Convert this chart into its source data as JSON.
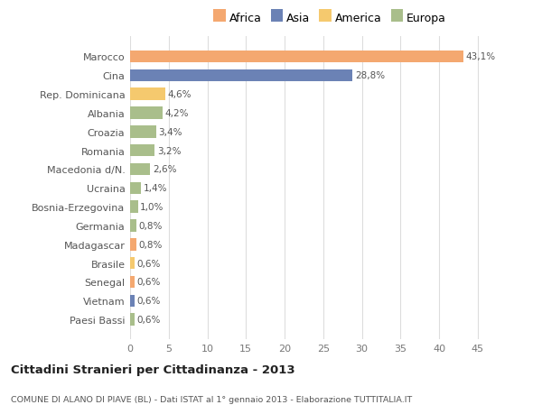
{
  "countries": [
    "Marocco",
    "Cina",
    "Rep. Dominicana",
    "Albania",
    "Croazia",
    "Romania",
    "Macedonia d/N.",
    "Ucraina",
    "Bosnia-Erzegovina",
    "Germania",
    "Madagascar",
    "Brasile",
    "Senegal",
    "Vietnam",
    "Paesi Bassi"
  ],
  "values": [
    43.1,
    28.8,
    4.6,
    4.2,
    3.4,
    3.2,
    2.6,
    1.4,
    1.0,
    0.8,
    0.8,
    0.6,
    0.6,
    0.6,
    0.6
  ],
  "labels": [
    "43,1%",
    "28,8%",
    "4,6%",
    "4,2%",
    "3,4%",
    "3,2%",
    "2,6%",
    "1,4%",
    "1,0%",
    "0,8%",
    "0,8%",
    "0,6%",
    "0,6%",
    "0,6%",
    "0,6%"
  ],
  "colors": [
    "#F4A870",
    "#6B82B5",
    "#F5C96E",
    "#A9BE8B",
    "#A9BE8B",
    "#A9BE8B",
    "#A9BE8B",
    "#A9BE8B",
    "#A9BE8B",
    "#A9BE8B",
    "#F4A870",
    "#F5C96E",
    "#F4A870",
    "#6B82B5",
    "#A9BE8B"
  ],
  "legend_labels": [
    "Africa",
    "Asia",
    "America",
    "Europa"
  ],
  "legend_colors": [
    "#F4A870",
    "#6B82B5",
    "#F5C96E",
    "#A9BE8B"
  ],
  "title": "Cittadini Stranieri per Cittadinanza - 2013",
  "subtitle": "COMUNE DI ALANO DI PIAVE (BL) - Dati ISTAT al 1° gennaio 2013 - Elaborazione TUTTITALIA.IT",
  "xlim": [
    0,
    47
  ],
  "xticks": [
    0,
    5,
    10,
    15,
    20,
    25,
    30,
    35,
    40,
    45
  ],
  "bg_color": "#FFFFFF",
  "grid_color": "#DDDDDD"
}
